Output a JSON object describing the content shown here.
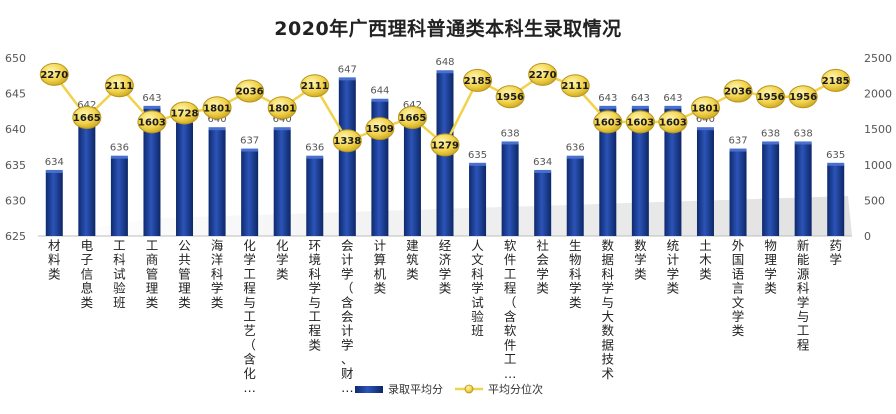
{
  "chart_data": {
    "type": "bar",
    "title": "2020年广西理科普通类本科生录取情况",
    "categories": [
      "材料类",
      "电子信息类",
      "工科试验班",
      "工商管理类",
      "公共管理类",
      "海洋科学类",
      "化学工程与工艺（含化…",
      "化学类",
      "环境科学与工程类",
      "会计学（含会计学、财…",
      "计算机类",
      "建筑类",
      "经济学类",
      "人文科学试验班",
      "软件工程（含软件工…",
      "社会学类",
      "生物科学类",
      "数据科学与大数据技术",
      "数学类",
      "统计学类",
      "土木类",
      "外国语言文学类",
      "物理学类",
      "新能源科学与工程",
      "药学"
    ],
    "series": [
      {
        "name": "录取平均分",
        "type": "bar",
        "axis": "left",
        "color": "#1f3f8f",
        "values": [
          634,
          642,
          636,
          643,
          641,
          640,
          637,
          640,
          636,
          647,
          644,
          642,
          648,
          635,
          638,
          634,
          636,
          643,
          643,
          643,
          640,
          637,
          638,
          638,
          635
        ]
      },
      {
        "name": "平均分位次",
        "type": "line",
        "axis": "right",
        "color": "#f2d24a",
        "values": [
          2270,
          1665,
          2111,
          1603,
          1728,
          1801,
          2036,
          1801,
          2111,
          1338,
          1509,
          1665,
          1279,
          2185,
          1956,
          2270,
          2111,
          1603,
          1603,
          1603,
          1801,
          2036,
          1956,
          1956,
          2185
        ]
      }
    ],
    "ylim_left": [
      625,
      650
    ],
    "yticks_left": [
      625,
      630,
      635,
      640,
      645,
      650
    ],
    "ylim_right": [
      0,
      2500
    ],
    "yticks_right": [
      0,
      500,
      1000,
      1500,
      2000,
      2500
    ],
    "grid": false,
    "legend_position": "bottom"
  }
}
